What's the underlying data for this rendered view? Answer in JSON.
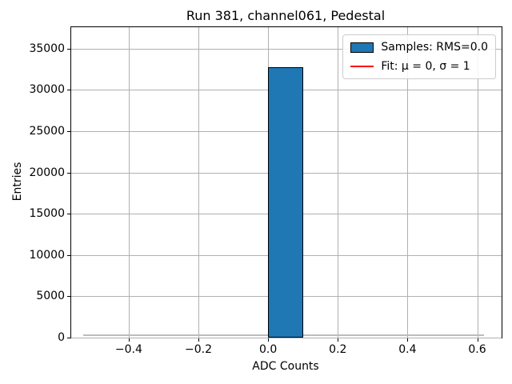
{
  "chart_data": {
    "type": "bar",
    "title": "Run 381, channel061, Pedestal",
    "xlabel": "ADC Counts",
    "ylabel": "Entries",
    "xlim": [
      -0.565,
      0.67
    ],
    "ylim": [
      0,
      37600
    ],
    "grid": true,
    "grid_color": "#b0b0b0",
    "xticks": {
      "values": [
        -0.4,
        -0.2,
        0.0,
        0.2,
        0.4,
        0.6
      ],
      "labels": [
        "−0.4",
        "−0.2",
        "0.0",
        "0.2",
        "0.4",
        "0.6"
      ]
    },
    "yticks": {
      "values": [
        0,
        5000,
        10000,
        15000,
        20000,
        25000,
        30000,
        35000
      ],
      "labels": [
        "0",
        "5000",
        "10000",
        "15000",
        "20000",
        "25000",
        "30000",
        "35000"
      ]
    },
    "bars": [
      {
        "x_start": 0.0,
        "x_end": 0.1,
        "count": 32768
      }
    ],
    "bar_fill_color": "#1f77b4",
    "bar_edge_color": "#000000",
    "fit_line": {
      "mu": 0,
      "sigma": 1,
      "x_start": -0.53,
      "x_end": 0.62,
      "y_level": 300,
      "plot_color": "#bcbcbc"
    },
    "legend": {
      "position": "upper right",
      "entries": [
        {
          "swatch": "patch",
          "color": "#1f77b4",
          "edge": "#000000",
          "label": "Samples: RMS=0.0"
        },
        {
          "swatch": "line",
          "color": "#ff0000",
          "edge": null,
          "label": "Fit: μ = 0, σ = 1"
        }
      ]
    }
  }
}
